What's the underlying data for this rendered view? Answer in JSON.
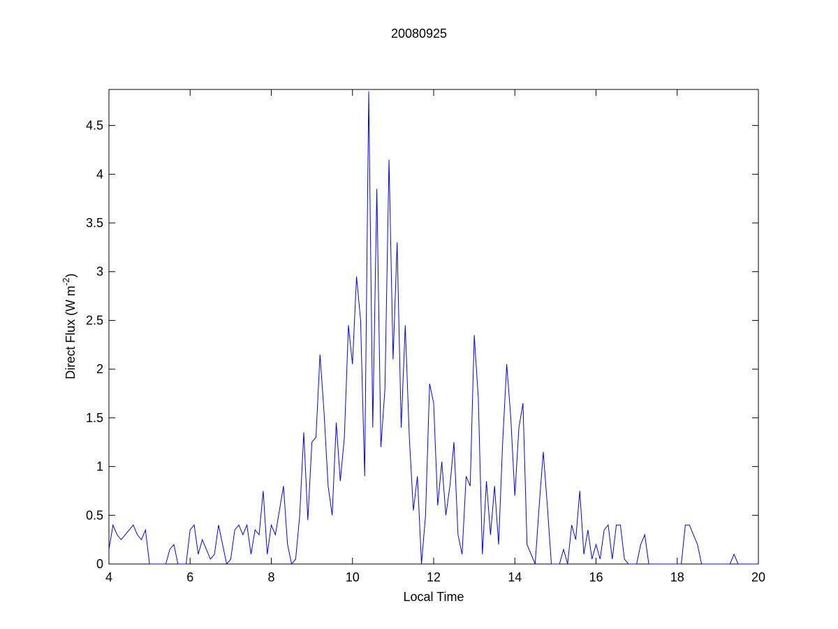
{
  "chart_data": {
    "type": "line",
    "title": "20080925",
    "xlabel": "Local Time",
    "ylabel_parts": [
      "Direct Flux (W m",
      "-2",
      ")"
    ],
    "x": [
      4.0,
      4.1,
      4.2,
      4.3,
      4.4,
      4.5,
      4.6,
      4.7,
      4.8,
      4.9,
      5.0,
      5.1,
      5.2,
      5.3,
      5.4,
      5.5,
      5.6,
      5.7,
      5.8,
      5.9,
      6.0,
      6.1,
      6.2,
      6.3,
      6.4,
      6.5,
      6.6,
      6.7,
      6.8,
      6.9,
      7.0,
      7.1,
      7.2,
      7.3,
      7.4,
      7.5,
      7.6,
      7.7,
      7.8,
      7.9,
      8.0,
      8.1,
      8.2,
      8.3,
      8.4,
      8.5,
      8.6,
      8.7,
      8.8,
      8.9,
      9.0,
      9.1,
      9.2,
      9.3,
      9.4,
      9.5,
      9.6,
      9.7,
      9.8,
      9.9,
      10.0,
      10.1,
      10.2,
      10.3,
      10.4,
      10.5,
      10.6,
      10.7,
      10.8,
      10.9,
      11.0,
      11.1,
      11.2,
      11.3,
      11.4,
      11.5,
      11.6,
      11.7,
      11.8,
      11.9,
      12.0,
      12.1,
      12.2,
      12.3,
      12.4,
      12.5,
      12.6,
      12.7,
      12.8,
      12.9,
      13.0,
      13.1,
      13.2,
      13.3,
      13.4,
      13.5,
      13.6,
      13.7,
      13.8,
      13.9,
      14.0,
      14.1,
      14.2,
      14.3,
      14.4,
      14.5,
      14.6,
      14.7,
      14.8,
      14.9,
      15.0,
      15.1,
      15.2,
      15.3,
      15.4,
      15.5,
      15.6,
      15.7,
      15.8,
      15.9,
      16.0,
      16.1,
      16.2,
      16.3,
      16.4,
      16.5,
      16.6,
      16.7,
      16.8,
      16.9,
      17.0,
      17.1,
      17.2,
      17.3,
      17.4,
      17.5,
      17.6,
      17.7,
      17.8,
      17.9,
      18.0,
      18.1,
      18.2,
      18.3,
      18.4,
      18.5,
      18.6,
      18.7,
      18.8,
      18.9,
      19.0,
      19.1,
      19.2,
      19.3,
      19.4,
      19.5,
      19.6,
      19.7,
      19.8,
      19.9,
      20.0
    ],
    "series": [
      {
        "color": "#0000ff",
        "values": [
          0.15,
          0.4,
          0.3,
          0.25,
          0.3,
          0.35,
          0.4,
          0.3,
          0.25,
          0.35,
          0,
          0,
          0,
          0,
          0,
          0.15,
          0.2,
          0,
          0,
          0,
          0.35,
          0.4,
          0.1,
          0.25,
          0.15,
          0.05,
          0.1,
          0.4,
          0.2,
          0,
          0.05,
          0.35,
          0.4,
          0.3,
          0.4,
          0.1,
          0.35,
          0.3,
          0.75,
          0.1,
          0.4,
          0.3,
          0.55,
          0.8,
          0.2,
          0,
          0.05,
          0.5,
          1.35,
          0.45,
          1.25,
          1.3,
          2.15,
          1.55,
          0.8,
          0.5,
          1.45,
          0.85,
          1.3,
          2.45,
          2.05,
          2.95,
          2.5,
          0.9,
          4.85,
          1.4,
          3.85,
          1.2,
          1.8,
          4.15,
          2.1,
          3.3,
          1.4,
          2.45,
          1.3,
          0.55,
          0.9,
          0,
          0.5,
          1.85,
          1.65,
          0.6,
          1.05,
          0.5,
          0.8,
          1.25,
          0.3,
          0.1,
          0.9,
          0.8,
          2.35,
          1.7,
          0.1,
          0.85,
          0.3,
          0.8,
          0.2,
          1.25,
          2.05,
          1.5,
          0.7,
          1.4,
          1.65,
          0.2,
          0.1,
          0,
          0.6,
          1.15,
          0.6,
          0,
          0,
          0,
          0.15,
          0,
          0.4,
          0.25,
          0.75,
          0.1,
          0.35,
          0.05,
          0.2,
          0.05,
          0.35,
          0.4,
          0.05,
          0.4,
          0.4,
          0.05,
          0,
          0,
          0,
          0.2,
          0.3,
          0,
          0,
          0,
          0,
          0,
          0,
          0,
          0,
          0,
          0.4,
          0.4,
          0.3,
          0.2,
          0,
          0,
          0,
          0,
          0,
          0,
          0,
          0,
          0.1,
          0,
          0,
          0,
          0,
          0,
          0
        ]
      }
    ],
    "xlim": [
      4,
      20
    ],
    "xticks": [
      4,
      6,
      8,
      10,
      12,
      14,
      16,
      18,
      20
    ],
    "ylim": [
      0,
      4.87
    ],
    "yticks": [
      0,
      0.5,
      1,
      1.5,
      2,
      2.5,
      3,
      3.5,
      4,
      4.5
    ]
  }
}
